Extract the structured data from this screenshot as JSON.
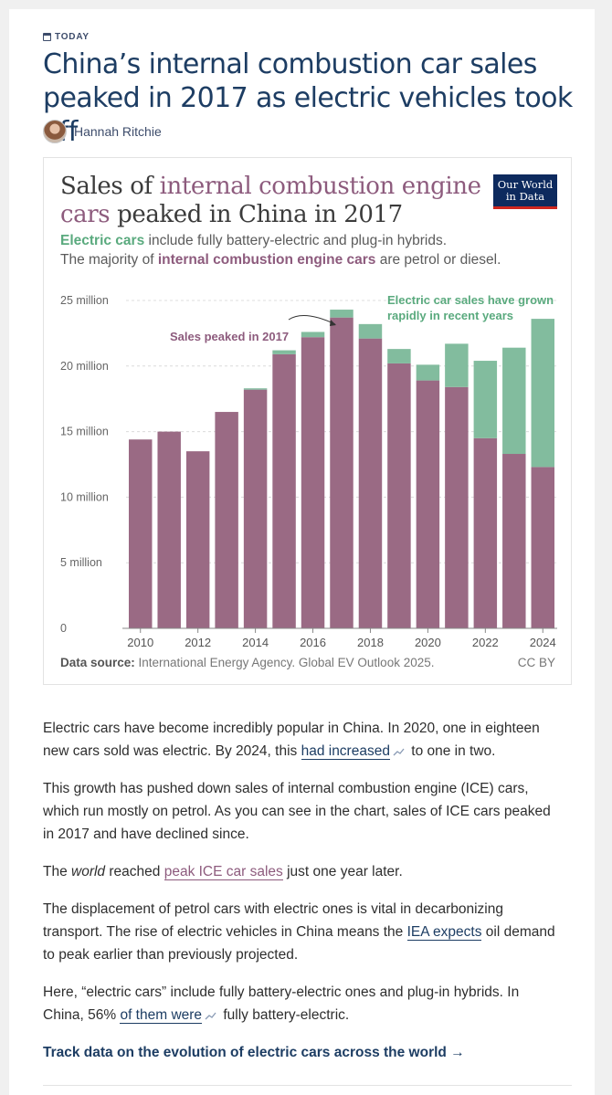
{
  "tag": {
    "label": "TODAY",
    "icon": "calendar-icon"
  },
  "article": {
    "title": "China’s internal combustion car sales peaked in 2017 as electric vehicles took off",
    "author": "Hannah Ritchie"
  },
  "chart_card": {
    "title_prefix": "Sales of ",
    "title_ice": "internal combustion engine cars",
    "title_suffix": " peaked in China in 2017",
    "logo_line1": "Our World",
    "logo_line2": "in Data",
    "subtitle_ev": "Electric cars",
    "subtitle_line1_rest": " include fully battery-electric and plug-in hybrids.",
    "subtitle_line2_prefix": "The majority of ",
    "subtitle_ice": "internal combustion engine cars",
    "subtitle_line2_suffix": " are petrol or diesel.",
    "source_label": "Data source:",
    "source_text": " International Energy Agency. Global EV Outlook 2025.",
    "license": "CC BY"
  },
  "chart_data": {
    "type": "bar",
    "stacked": true,
    "title": "Sales of internal combustion engine cars peaked in China in 2017",
    "categories": [
      2010,
      2011,
      2012,
      2013,
      2014,
      2015,
      2016,
      2017,
      2018,
      2019,
      2020,
      2021,
      2022,
      2023,
      2024
    ],
    "series": [
      {
        "name": "Internal combustion engine cars",
        "color": "#9a6a84",
        "values": [
          14.4,
          15.0,
          13.5,
          16.5,
          18.2,
          20.9,
          22.2,
          23.7,
          22.1,
          20.2,
          18.9,
          18.4,
          14.5,
          13.3,
          12.3
        ]
      },
      {
        "name": "Electric cars",
        "color": "#82bc9e",
        "values": [
          0.0,
          0.0,
          0.0,
          0.0,
          0.1,
          0.3,
          0.4,
          0.6,
          1.1,
          1.1,
          1.2,
          3.3,
          5.9,
          8.1,
          11.3
        ]
      }
    ],
    "ylim": [
      0,
      25
    ],
    "yticks": [
      0,
      5,
      10,
      15,
      20,
      25
    ],
    "ytick_labels": [
      "0",
      "5 million",
      "10 million",
      "15 million",
      "20 million",
      "25 million"
    ],
    "xticks": [
      2010,
      2012,
      2014,
      2016,
      2018,
      2020,
      2022,
      2024
    ],
    "xtick_labels": [
      "2010",
      "2012",
      "2014",
      "2016",
      "2018",
      "2020",
      "2022",
      "2024"
    ],
    "annotations": [
      {
        "text": "Sales peaked in 2017",
        "color": "#8d5b7d"
      },
      {
        "line1": "Electric car sales have grown",
        "line2": "rapidly in recent years",
        "color": "#5aaa7e"
      }
    ]
  },
  "body": {
    "p1_a": "Electric cars have become incredibly popular in China. In 2020, one in eighteen new cars sold was electric. By 2024, this ",
    "p1_link": "had increased",
    "p1_b": " to one in two.",
    "p2": "This growth has pushed down sales of internal combustion engine (ICE) cars, which run mostly on petrol. As you can see in the chart, sales of ICE cars peaked in 2017 and have declined since.",
    "p3_a": "The ",
    "p3_em": "world",
    "p3_b": " reached ",
    "p3_link": "peak ICE car sales",
    "p3_c": " just one year later.",
    "p4_a": "The displacement of petrol cars with electric ones is vital in decarbonizing transport. The rise of electric vehicles in China means the ",
    "p4_link": "IEA expects",
    "p4_b": " oil demand to peak earlier than previously projected.",
    "p5_a": "Here, “electric cars” include fully battery-electric ones and plug-in hybrids. In China, 56% ",
    "p5_link": "of them were",
    "p5_b": " fully battery-electric.",
    "track": "Track data on the evolution of electric cars across the world →"
  }
}
